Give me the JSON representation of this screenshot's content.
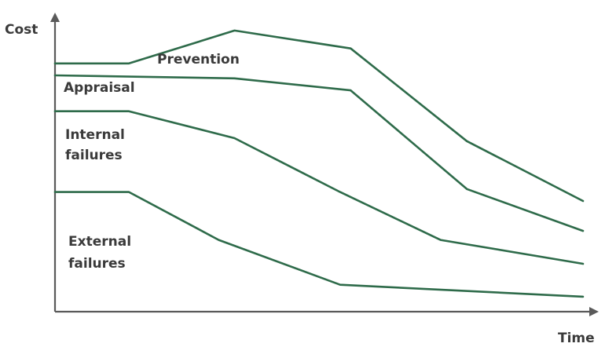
{
  "chart_data": {
    "type": "line",
    "title": "",
    "xlabel": "Time",
    "ylabel": "Cost",
    "grid": false,
    "legend": "none",
    "line_color": "#2e6b4a",
    "axis_color": "#5a5a5a",
    "text_color": "#3a3a3a",
    "xlim": [
      0,
      10
    ],
    "ylim": [
      0,
      10
    ],
    "series": [
      {
        "x": [
          0,
          1.4,
          3.4,
          5.6,
          7.8,
          10
        ],
        "values": [
          8.3,
          8.3,
          9.4,
          8.8,
          5.7,
          3.7
        ]
      },
      {
        "x": [
          0,
          3.4,
          5.6,
          7.8,
          10
        ],
        "values": [
          7.9,
          7.8,
          7.4,
          4.1,
          2.7
        ]
      },
      {
        "x": [
          0,
          1.4,
          3.4,
          5.4,
          7.3,
          10
        ],
        "values": [
          6.7,
          6.7,
          5.8,
          4.0,
          2.4,
          1.6
        ]
      },
      {
        "x": [
          0,
          1.4,
          3.1,
          5.4,
          10
        ],
        "values": [
          4.0,
          4.0,
          2.4,
          0.9,
          0.5
        ]
      }
    ],
    "annotations": [
      {
        "text": "Prevention"
      },
      {
        "text": "Appraisal"
      },
      {
        "text": "Internal",
        "text2": "failures"
      },
      {
        "text": "External",
        "text2": "failures"
      }
    ]
  }
}
